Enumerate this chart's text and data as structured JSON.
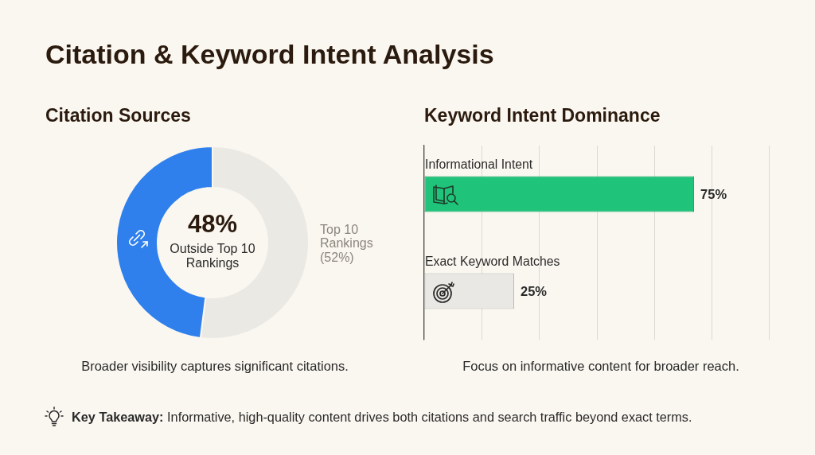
{
  "chart_data": [
    {
      "type": "other",
      "title": "Citation & Keyword Intent Analysis"
    },
    {
      "type": "donut",
      "title": "Citation Sources",
      "categories": [
        "Top 10 Rankings",
        "Outside Top 10 Rankings"
      ],
      "values": [
        52,
        48
      ],
      "colors": [
        "#ebe9e4",
        "#2f80ed"
      ],
      "value_labels": [
        "(52%)",
        "48%"
      ],
      "annotations": [
        "Broader visibility captures significant citations."
      ]
    },
    {
      "type": "bar",
      "orientation": "horizontal",
      "title": "Keyword Intent Dominance",
      "categories": [
        "Informational Intent",
        "Exact Keyword Matches"
      ],
      "values": [
        75,
        25
      ],
      "colors": [
        "#1fc47a",
        "#e9e8e4"
      ],
      "value_labels": [
        "75%",
        "25%"
      ],
      "xlim": [
        0,
        96
      ],
      "xticks": [
        {
          "value": 0,
          "label": null
        },
        {
          "value": 16,
          "label": null
        },
        {
          "value": 32,
          "label": null
        },
        {
          "value": 48,
          "label": null
        },
        {
          "value": 64,
          "label": null
        },
        {
          "value": 80,
          "label": null
        }
      ],
      "grid": "x",
      "tick_labels": "y",
      "annotations": [
        "Focus on informative content for broader reach."
      ]
    },
    {
      "type": "other",
      "annotations": [
        "Key Takeaway: Informative, high-quality content drives both citations and search traffic beyond exact terms."
      ]
    }
  ]
}
